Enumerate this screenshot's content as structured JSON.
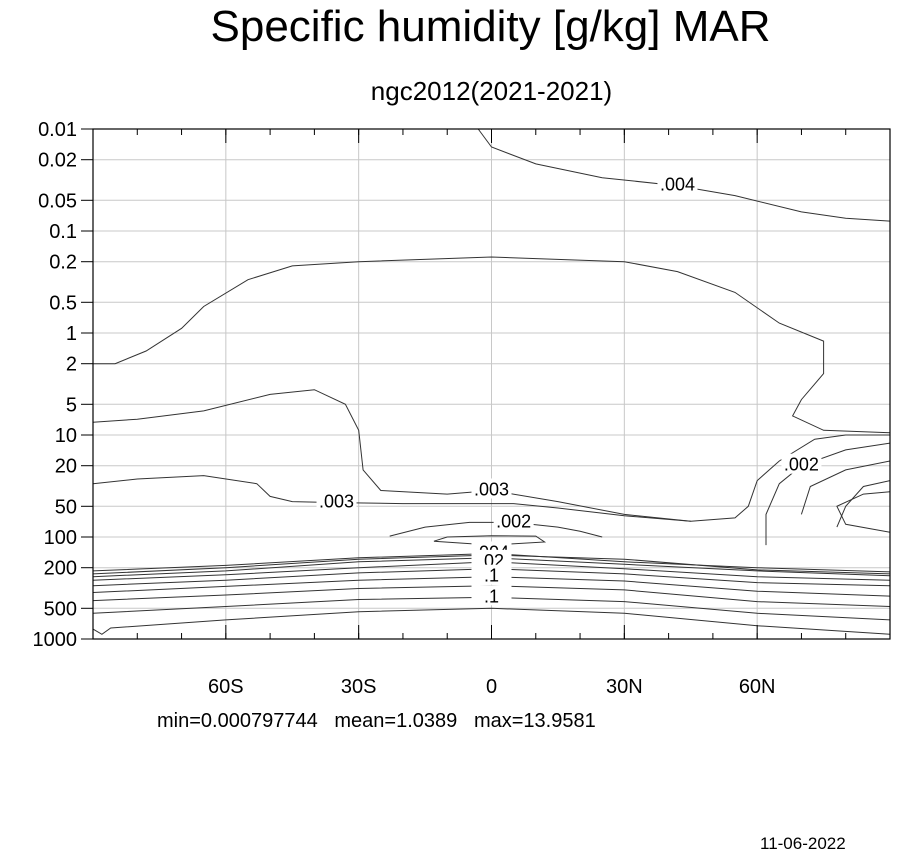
{
  "chart_data": {
    "type": "contour",
    "title": "Specific humidity [g/kg] MAR",
    "subtitle": "ngc2012(2021-2021)",
    "x_axis": {
      "range": [
        -90,
        90
      ],
      "ticks": [
        {
          "value": -60,
          "label": "60S"
        },
        {
          "value": -30,
          "label": "30S"
        },
        {
          "value": 0,
          "label": "0"
        },
        {
          "value": 30,
          "label": "30N"
        },
        {
          "value": 60,
          "label": "60N"
        }
      ]
    },
    "y_axis": {
      "scale": "log",
      "reversed": true,
      "range": [
        0.01,
        1000
      ],
      "ticks": [
        {
          "value": 0.01,
          "label": "0.01"
        },
        {
          "value": 0.02,
          "label": "0.02"
        },
        {
          "value": 0.05,
          "label": "0.05"
        },
        {
          "value": 0.1,
          "label": "0.1"
        },
        {
          "value": 0.2,
          "label": "0.2"
        },
        {
          "value": 0.5,
          "label": "0.5"
        },
        {
          "value": 1,
          "label": "1"
        },
        {
          "value": 2,
          "label": "2"
        },
        {
          "value": 5,
          "label": "5"
        },
        {
          "value": 10,
          "label": "10"
        },
        {
          "value": 20,
          "label": "20"
        },
        {
          "value": 50,
          "label": "50"
        },
        {
          "value": 100,
          "label": "100"
        },
        {
          "value": 200,
          "label": "200"
        },
        {
          "value": 500,
          "label": "500"
        },
        {
          "value": 1000,
          "label": "1000"
        }
      ]
    },
    "grid": true,
    "contours": [
      {
        "label": ".004",
        "points": [
          [
            -3,
            0.01
          ],
          [
            0,
            0.015
          ],
          [
            10,
            0.022
          ],
          [
            25,
            0.03
          ],
          [
            42,
            0.036
          ],
          [
            55,
            0.045
          ],
          [
            70,
            0.065
          ],
          [
            80,
            0.075
          ],
          [
            90,
            0.08
          ]
        ]
      },
      {
        "label": null,
        "points": [
          [
            -90,
            2
          ],
          [
            -85,
            2
          ],
          [
            -78,
            1.5
          ],
          [
            -70,
            0.9
          ],
          [
            -65,
            0.55
          ],
          [
            -55,
            0.3
          ],
          [
            -45,
            0.22
          ],
          [
            -30,
            0.2
          ],
          [
            0,
            0.18
          ],
          [
            30,
            0.2
          ],
          [
            42,
            0.25
          ],
          [
            55,
            0.4
          ],
          [
            65,
            0.8
          ],
          [
            75,
            1.2
          ],
          [
            75,
            2.5
          ],
          [
            70,
            4.5
          ],
          [
            68,
            6.5
          ],
          [
            75,
            9
          ],
          [
            90,
            9.5
          ]
        ]
      },
      {
        "label": ".003",
        "points": [
          [
            -90,
            7.5
          ],
          [
            -80,
            7
          ],
          [
            -65,
            5.8
          ],
          [
            -50,
            4
          ],
          [
            -40,
            3.6
          ],
          [
            -33,
            5
          ],
          [
            -30,
            9
          ],
          [
            -29,
            22
          ],
          [
            -25,
            35
          ],
          [
            -10,
            38
          ],
          [
            0,
            35
          ],
          [
            15,
            45
          ],
          [
            30,
            60
          ],
          [
            45,
            70
          ],
          [
            55,
            65
          ],
          [
            58,
            50
          ],
          [
            60,
            28
          ],
          [
            65,
            18
          ],
          [
            73,
            11
          ],
          [
            80,
            10
          ],
          [
            90,
            10
          ]
        ]
      },
      {
        "label": ".003",
        "points": [
          [
            -90,
            30
          ],
          [
            -80,
            27
          ],
          [
            -65,
            25
          ],
          [
            -53,
            30
          ],
          [
            -50,
            40
          ],
          [
            -45,
            45
          ],
          [
            -35,
            46
          ],
          [
            -20,
            47
          ],
          [
            -5,
            47
          ],
          [
            5,
            47
          ],
          [
            15,
            52
          ],
          [
            30,
            62
          ],
          [
            45,
            70
          ]
        ]
      },
      {
        "label": ".002",
        "points": [
          [
            -23,
            98
          ],
          [
            -15,
            80
          ],
          [
            -5,
            72
          ],
          [
            5,
            72
          ],
          [
            15,
            80
          ],
          [
            20,
            88
          ],
          [
            25,
            100
          ]
        ]
      },
      {
        "label": null,
        "points": [
          [
            -13,
            110
          ],
          [
            -10,
            100
          ],
          [
            0,
            97
          ],
          [
            10,
            98
          ],
          [
            12,
            112
          ],
          [
            0,
            120
          ],
          [
            -13,
            110
          ]
        ]
      },
      {
        "label": ".002",
        "points": [
          [
            62,
            120
          ],
          [
            62,
            60
          ],
          [
            65,
            30
          ],
          [
            70,
            20
          ],
          [
            80,
            14
          ],
          [
            90,
            12
          ]
        ]
      },
      {
        "label": null,
        "points": [
          [
            70,
            60
          ],
          [
            72,
            32
          ],
          [
            80,
            22
          ],
          [
            90,
            18
          ]
        ]
      },
      {
        "label": null,
        "points": [
          [
            78,
            80
          ],
          [
            80,
            50
          ],
          [
            84,
            32
          ],
          [
            90,
            28
          ]
        ]
      },
      {
        "label": null,
        "points": [
          [
            90,
            90
          ],
          [
            80,
            75
          ],
          [
            78,
            50
          ],
          [
            84,
            38
          ],
          [
            90,
            36
          ]
        ]
      },
      {
        "label": ".003",
        "points": [
          [
            -90,
            230
          ],
          [
            -60,
            200
          ],
          [
            -30,
            165
          ],
          [
            0,
            150
          ],
          [
            30,
            165
          ],
          [
            60,
            210
          ],
          [
            90,
            230
          ]
        ]
      },
      {
        "label": ".004",
        "points": [
          [
            -90,
            215
          ],
          [
            -60,
            190
          ],
          [
            -30,
            160
          ],
          [
            0,
            145
          ],
          [
            30,
            175
          ],
          [
            60,
            200
          ],
          [
            90,
            220
          ]
        ]
      },
      {
        "label": null,
        "points": [
          [
            -90,
            245
          ],
          [
            -60,
            215
          ],
          [
            -30,
            175
          ],
          [
            0,
            160
          ],
          [
            30,
            185
          ],
          [
            60,
            215
          ],
          [
            90,
            240
          ]
        ]
      },
      {
        "label": ".02",
        "points": [
          [
            -90,
            265
          ],
          [
            -60,
            235
          ],
          [
            -30,
            200
          ],
          [
            0,
            175
          ],
          [
            30,
            205
          ],
          [
            60,
            245
          ],
          [
            90,
            265
          ]
        ]
      },
      {
        "label": null,
        "points": [
          [
            -90,
            300
          ],
          [
            -60,
            265
          ],
          [
            -30,
            225
          ],
          [
            0,
            205
          ],
          [
            30,
            230
          ],
          [
            60,
            280
          ],
          [
            90,
            300
          ]
        ]
      },
      {
        "label": ".1",
        "points": [
          [
            -90,
            350
          ],
          [
            -60,
            305
          ],
          [
            -30,
            265
          ],
          [
            0,
            245
          ],
          [
            30,
            270
          ],
          [
            60,
            340
          ],
          [
            90,
            380
          ]
        ]
      },
      {
        "label": null,
        "points": [
          [
            -90,
            420
          ],
          [
            -60,
            370
          ],
          [
            -30,
            320
          ],
          [
            0,
            300
          ],
          [
            30,
            330
          ],
          [
            60,
            430
          ],
          [
            90,
            480
          ]
        ]
      },
      {
        "label": ".1",
        "points": [
          [
            -90,
            560
          ],
          [
            -60,
            480
          ],
          [
            -30,
            410
          ],
          [
            0,
            390
          ],
          [
            30,
            430
          ],
          [
            60,
            560
          ],
          [
            90,
            650
          ]
        ]
      },
      {
        "label": null,
        "points": [
          [
            -90,
            800
          ],
          [
            -88,
            900
          ],
          [
            -86,
            780
          ],
          [
            -60,
            650
          ],
          [
            -30,
            540
          ],
          [
            0,
            500
          ],
          [
            30,
            560
          ],
          [
            60,
            740
          ],
          [
            90,
            900
          ]
        ]
      }
    ]
  },
  "stats": {
    "min_label": "min=0.000797744",
    "mean_label": "mean=1.0389",
    "max_label": "max=13.9581"
  },
  "date": "11-06-2022"
}
